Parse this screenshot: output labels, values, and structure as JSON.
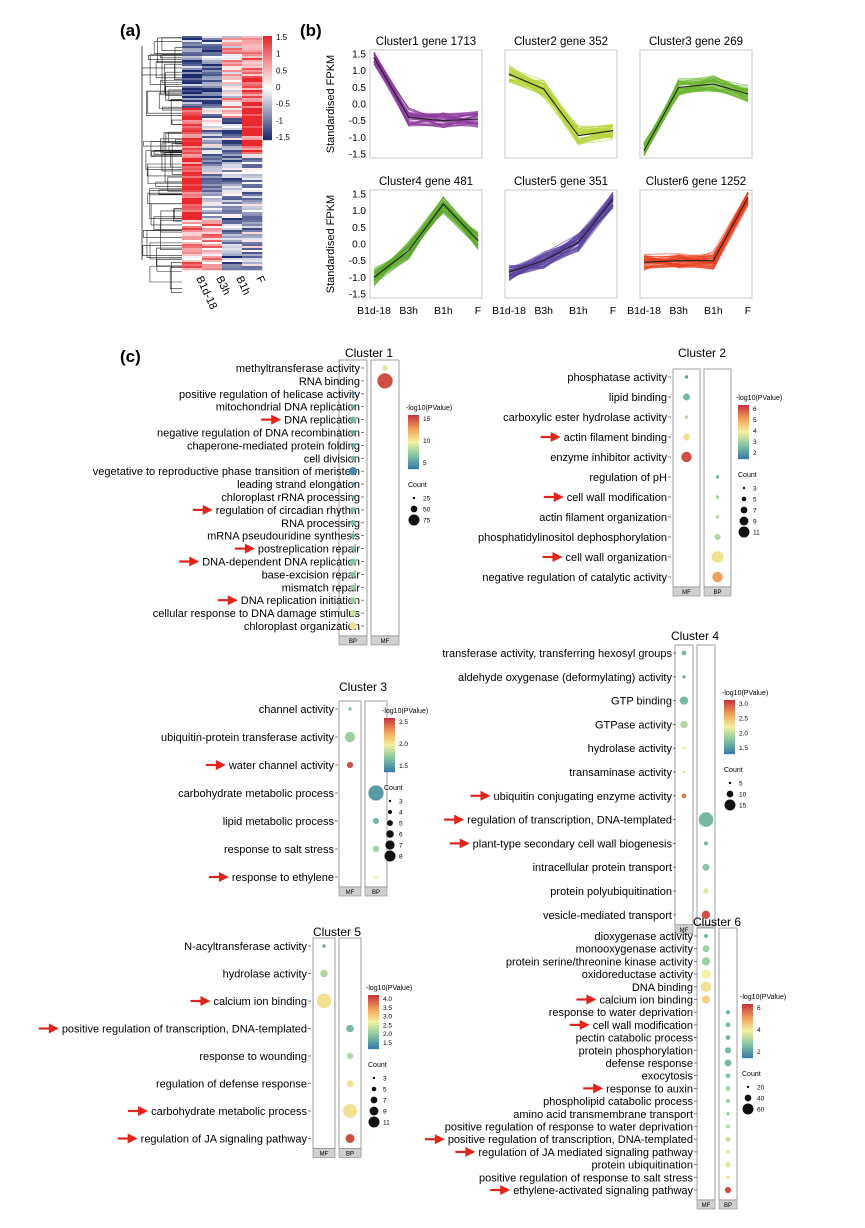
{
  "panel_labels": {
    "a": "(a)",
    "b": "(b)",
    "c": "(c)"
  },
  "heatmap": {
    "columns": [
      "B1d-18",
      "B3h",
      "B1h",
      "F"
    ],
    "scale_ticks": [
      "1.5",
      "1",
      "0.5",
      "0",
      "-0.5",
      "-1",
      "-1.5"
    ],
    "colors": {
      "high": "#e8282d",
      "mid": "#ffffff",
      "low": "#1c2a6e"
    }
  },
  "line_clusters": {
    "ylabel": "Standardised FPKM",
    "y_ticks": [
      "1.5",
      "1.0",
      "0.5",
      "0.0",
      "-0.5",
      "-1.0",
      "-1.5"
    ],
    "x_ticks": [
      "B1d-18",
      "B3h",
      "B1h",
      "F"
    ],
    "panels": [
      {
        "title": "Cluster1  gene 1713",
        "color": "#8e3a9f",
        "mean": [
          1.4,
          -0.4,
          -0.5,
          -0.45
        ]
      },
      {
        "title": "Cluster2  gene 352",
        "color": "#b4d437",
        "mean": [
          0.9,
          0.45,
          -0.95,
          -0.8
        ]
      },
      {
        "title": "Cluster3  gene 269",
        "color": "#6ab42e",
        "mean": [
          -1.4,
          0.5,
          0.6,
          0.3
        ]
      },
      {
        "title": "Cluster4  gene 481",
        "color": "#5aa82a",
        "mean": [
          -1.0,
          -0.2,
          1.2,
          0.1
        ]
      },
      {
        "title": "Cluster5  gene 351",
        "color": "#5a3f9f",
        "mean": [
          -0.85,
          -0.5,
          0.05,
          1.35
        ]
      },
      {
        "title": "Cluster6  gene 1252",
        "color": "#e8401f",
        "mean": [
          -0.55,
          -0.5,
          -0.5,
          1.4
        ]
      }
    ]
  },
  "go_clusters": [
    {
      "title": "Cluster 1",
      "groups": [
        "BP",
        "MF"
      ],
      "legend_title": "-log10(PValue)",
      "color_ticks": [
        "15",
        "10",
        "5"
      ],
      "count_title": "Count",
      "count_ticks": [
        "25",
        "50",
        "75"
      ],
      "terms": [
        {
          "label": "methyltransferase activity",
          "arrow": false,
          "g": 1,
          "c": 0.45,
          "s": 0.25
        },
        {
          "label": "RNA binding",
          "arrow": false,
          "g": 1,
          "c": 0.95,
          "s": 0.95
        },
        {
          "label": "positive regulation of helicase activity",
          "arrow": false,
          "g": 0,
          "c": 0.1,
          "s": 0.1
        },
        {
          "label": "mitochondrial DNA replication",
          "arrow": false,
          "g": 0,
          "c": 0.15,
          "s": 0.15
        },
        {
          "label": "DNA replication",
          "arrow": true,
          "g": 0,
          "c": 0.2,
          "s": 0.3
        },
        {
          "label": "negative regulation of DNA recombination",
          "arrow": false,
          "g": 0,
          "c": 0.15,
          "s": 0.2
        },
        {
          "label": "chaperone-mediated protein folding",
          "arrow": false,
          "g": 0,
          "c": 0.15,
          "s": 0.2
        },
        {
          "label": "cell division",
          "arrow": false,
          "g": 0,
          "c": 0.2,
          "s": 0.2
        },
        {
          "label": "vegetative to reproductive phase transition of meristem",
          "arrow": false,
          "g": 0,
          "c": 0.05,
          "s": 0.45
        },
        {
          "label": "leading strand elongation",
          "arrow": false,
          "g": 0,
          "c": 0.1,
          "s": 0.1
        },
        {
          "label": "chloroplast rRNA processing",
          "arrow": false,
          "g": 0,
          "c": 0.15,
          "s": 0.1
        },
        {
          "label": "regulation of circadian rhythm",
          "arrow": true,
          "g": 0,
          "c": 0.2,
          "s": 0.25
        },
        {
          "label": "RNA processing",
          "arrow": false,
          "g": 0,
          "c": 0.2,
          "s": 0.25
        },
        {
          "label": "mRNA pseudouridine synthesis",
          "arrow": false,
          "g": 0,
          "c": 0.2,
          "s": 0.2
        },
        {
          "label": "postreplication repair",
          "arrow": true,
          "g": 0,
          "c": 0.2,
          "s": 0.2
        },
        {
          "label": "DNA-dependent DNA replication",
          "arrow": true,
          "g": 0,
          "c": 0.25,
          "s": 0.3
        },
        {
          "label": "base-excision repair",
          "arrow": false,
          "g": 0,
          "c": 0.25,
          "s": 0.25
        },
        {
          "label": "mismatch repair",
          "arrow": false,
          "g": 0,
          "c": 0.3,
          "s": 0.25
        },
        {
          "label": "DNA replication initiation",
          "arrow": true,
          "g": 0,
          "c": 0.3,
          "s": 0.3
        },
        {
          "label": "cellular response to DNA damage stimulus",
          "arrow": false,
          "g": 0,
          "c": 0.4,
          "s": 0.3
        },
        {
          "label": "chloroplast organization",
          "arrow": false,
          "g": 0,
          "c": 0.55,
          "s": 0.4
        }
      ]
    },
    {
      "title": "Cluster 2",
      "groups": [
        "MF",
        "BP"
      ],
      "legend_title": "-log10(PValue)",
      "color_ticks": [
        "6",
        "5",
        "4",
        "3",
        "2"
      ],
      "count_title": "Count",
      "count_ticks": [
        "3",
        "5",
        "7",
        "9",
        "11"
      ],
      "terms": [
        {
          "label": "phosphatase activity",
          "arrow": false,
          "g": 0,
          "c": 0.1,
          "s": 0.1
        },
        {
          "label": "lipid binding",
          "arrow": false,
          "g": 0,
          "c": 0.2,
          "s": 0.35
        },
        {
          "label": "carboxylic ester hydrolase activity",
          "arrow": false,
          "g": 0,
          "c": 0.35,
          "s": 0.1
        },
        {
          "label": "actin filament binding",
          "arrow": true,
          "g": 0,
          "c": 0.55,
          "s": 0.35
        },
        {
          "label": "enzyme inhibitor activity",
          "arrow": false,
          "g": 0,
          "c": 0.95,
          "s": 0.6
        },
        {
          "label": "regulation of pH",
          "arrow": false,
          "g": 1,
          "c": 0.2,
          "s": 0.1
        },
        {
          "label": "cell wall modification",
          "arrow": true,
          "g": 1,
          "c": 0.3,
          "s": 0.1
        },
        {
          "label": "actin filament organization",
          "arrow": false,
          "g": 1,
          "c": 0.35,
          "s": 0.1
        },
        {
          "label": "phosphatidylinositol dephosphorylation",
          "arrow": false,
          "g": 1,
          "c": 0.35,
          "s": 0.3
        },
        {
          "label": "cell wall organization",
          "arrow": true,
          "g": 1,
          "c": 0.55,
          "s": 0.7
        },
        {
          "label": "negative regulation of catalytic activity",
          "arrow": false,
          "g": 1,
          "c": 0.75,
          "s": 0.6
        }
      ]
    },
    {
      "title": "Cluster 3",
      "groups": [
        "MF",
        "BP"
      ],
      "legend_title": "-log10(PValue)",
      "color_ticks": [
        "2.5",
        "2.0",
        "1.5"
      ],
      "count_title": "Count",
      "count_ticks": [
        "3",
        "4",
        "5",
        "6",
        "7",
        "8"
      ],
      "terms": [
        {
          "label": "channel activity",
          "arrow": false,
          "g": 0,
          "c": 0.25,
          "s": 0.1
        },
        {
          "label": "ubiquitin-protein transferase activity",
          "arrow": false,
          "g": 0,
          "c": 0.3,
          "s": 0.6
        },
        {
          "label": "water channel activity",
          "arrow": true,
          "g": 0,
          "c": 0.95,
          "s": 0.3
        },
        {
          "label": "carbohydrate metabolic process",
          "arrow": false,
          "g": 1,
          "c": 0.1,
          "s": 0.95
        },
        {
          "label": "lipid metabolic process",
          "arrow": false,
          "g": 1,
          "c": 0.2,
          "s": 0.3
        },
        {
          "label": "response to salt stress",
          "arrow": false,
          "g": 1,
          "c": 0.3,
          "s": 0.3
        },
        {
          "label": "response to ethylene",
          "arrow": true,
          "g": 1,
          "c": 0.5,
          "s": 0.1
        }
      ]
    },
    {
      "title": "Cluster 4",
      "groups": [
        "MF",
        "BP"
      ],
      "legend_title": "-log10(PValue)",
      "color_ticks": [
        "3.0",
        "2.5",
        "2.0",
        "1.5"
      ],
      "count_title": "Count",
      "count_ticks": [
        "5",
        "10",
        "15"
      ],
      "terms": [
        {
          "label": "transferase activity, transferring hexosyl groups",
          "arrow": false,
          "g": 0,
          "c": 0.2,
          "s": 0.2
        },
        {
          "label": "aldehyde oxygenase (deformylating) activity",
          "arrow": false,
          "g": 0,
          "c": 0.15,
          "s": 0.1
        },
        {
          "label": "GTP binding",
          "arrow": false,
          "g": 0,
          "c": 0.2,
          "s": 0.45
        },
        {
          "label": "GTPase activity",
          "arrow": false,
          "g": 0,
          "c": 0.35,
          "s": 0.4
        },
        {
          "label": "hydrolase activity",
          "arrow": false,
          "g": 0,
          "c": 0.5,
          "s": 0.1
        },
        {
          "label": "transaminase activity",
          "arrow": false,
          "g": 0,
          "c": 0.55,
          "s": 0.05
        },
        {
          "label": "ubiquitin conjugating enzyme activity",
          "arrow": true,
          "g": 0,
          "c": 0.85,
          "s": 0.2
        },
        {
          "label": "regulation of transcription, DNA-templated",
          "arrow": true,
          "g": 1,
          "c": 0.2,
          "s": 0.9
        },
        {
          "label": "plant-type secondary cell wall biogenesis",
          "arrow": true,
          "g": 1,
          "c": 0.2,
          "s": 0.15
        },
        {
          "label": "intracellular protein transport",
          "arrow": false,
          "g": 1,
          "c": 0.25,
          "s": 0.35
        },
        {
          "label": "protein polyubiquitination",
          "arrow": false,
          "g": 1,
          "c": 0.45,
          "s": 0.25
        },
        {
          "label": "vesicle-mediated transport",
          "arrow": false,
          "g": 1,
          "c": 0.95,
          "s": 0.45
        }
      ]
    },
    {
      "title": "Cluster 5",
      "groups": [
        "MF",
        "BP"
      ],
      "legend_title": "-log10(PValue)",
      "color_ticks": [
        "4.0",
        "3.5",
        "3.0",
        "2.5",
        "2.0",
        "1.5"
      ],
      "count_title": "Count",
      "count_ticks": [
        "3",
        "5",
        "7",
        "9",
        "11"
      ],
      "terms": [
        {
          "label": "N-acyltransferase activity",
          "arrow": false,
          "g": 0,
          "c": 0.15,
          "s": 0.1
        },
        {
          "label": "hydrolase activity",
          "arrow": false,
          "g": 0,
          "c": 0.35,
          "s": 0.4
        },
        {
          "label": "calcium ion binding",
          "arrow": true,
          "g": 0,
          "c": 0.55,
          "s": 0.9
        },
        {
          "label": "positive regulation of transcription, DNA-templated",
          "arrow": true,
          "g": 1,
          "c": 0.2,
          "s": 0.4
        },
        {
          "label": "response to wounding",
          "arrow": false,
          "g": 1,
          "c": 0.35,
          "s": 0.3
        },
        {
          "label": "regulation of defense response",
          "arrow": false,
          "g": 1,
          "c": 0.55,
          "s": 0.35
        },
        {
          "label": "carbohydrate metabolic process",
          "arrow": true,
          "g": 1,
          "c": 0.55,
          "s": 0.85
        },
        {
          "label": "regulation of JA signaling pathway",
          "arrow": true,
          "g": 1,
          "c": 0.95,
          "s": 0.5
        }
      ]
    },
    {
      "title": "Cluster 6",
      "groups": [
        "MF",
        "BP"
      ],
      "legend_title": "-log10(PValue)",
      "color_ticks": [
        "6",
        "4",
        "2"
      ],
      "count_title": "Count",
      "count_ticks": [
        "20",
        "40",
        "60"
      ],
      "terms": [
        {
          "label": "dioxygenase activity",
          "arrow": false,
          "g": 0,
          "c": 0.2,
          "s": 0.15
        },
        {
          "label": "monooxygenase activity",
          "arrow": false,
          "g": 0,
          "c": 0.3,
          "s": 0.35
        },
        {
          "label": "protein serine/threonine kinase activity",
          "arrow": false,
          "g": 0,
          "c": 0.3,
          "s": 0.45
        },
        {
          "label": "oxidoreductase activity",
          "arrow": false,
          "g": 0,
          "c": 0.5,
          "s": 0.5
        },
        {
          "label": "DNA binding",
          "arrow": false,
          "g": 0,
          "c": 0.55,
          "s": 0.6
        },
        {
          "label": "calcium ion binding",
          "arrow": true,
          "g": 0,
          "c": 0.6,
          "s": 0.45
        },
        {
          "label": "response to water deprivation",
          "arrow": false,
          "g": 1,
          "c": 0.2,
          "s": 0.15
        },
        {
          "label": "cell wall modification",
          "arrow": true,
          "g": 1,
          "c": 0.2,
          "s": 0.2
        },
        {
          "label": "pectin catabolic process",
          "arrow": false,
          "g": 1,
          "c": 0.2,
          "s": 0.2
        },
        {
          "label": "protein phosphorylation",
          "arrow": false,
          "g": 1,
          "c": 0.2,
          "s": 0.3
        },
        {
          "label": "defense response",
          "arrow": false,
          "g": 1,
          "c": 0.2,
          "s": 0.35
        },
        {
          "label": "exocytosis",
          "arrow": false,
          "g": 1,
          "c": 0.25,
          "s": 0.2
        },
        {
          "label": "response to auxin",
          "arrow": true,
          "g": 1,
          "c": 0.3,
          "s": 0.2
        },
        {
          "label": "phospholipid catabolic process",
          "arrow": false,
          "g": 1,
          "c": 0.3,
          "s": 0.15
        },
        {
          "label": "amino acid transmembrane transport",
          "arrow": false,
          "g": 1,
          "c": 0.3,
          "s": 0.1
        },
        {
          "label": "positive regulation of response to water deprivation",
          "arrow": false,
          "g": 1,
          "c": 0.35,
          "s": 0.15
        },
        {
          "label": "positive regulation of transcription, DNA-templated",
          "arrow": true,
          "g": 1,
          "c": 0.4,
          "s": 0.2
        },
        {
          "label": "regulation of JA mediated signaling pathway",
          "arrow": true,
          "g": 1,
          "c": 0.45,
          "s": 0.15
        },
        {
          "label": "protein ubiquitination",
          "arrow": false,
          "g": 1,
          "c": 0.45,
          "s": 0.25
        },
        {
          "label": "positive regulation of response to salt stress",
          "arrow": false,
          "g": 1,
          "c": 0.55,
          "s": 0.1
        },
        {
          "label": "ethylene-activated signaling pathway",
          "arrow": true,
          "g": 1,
          "c": 0.95,
          "s": 0.3
        }
      ]
    }
  ]
}
